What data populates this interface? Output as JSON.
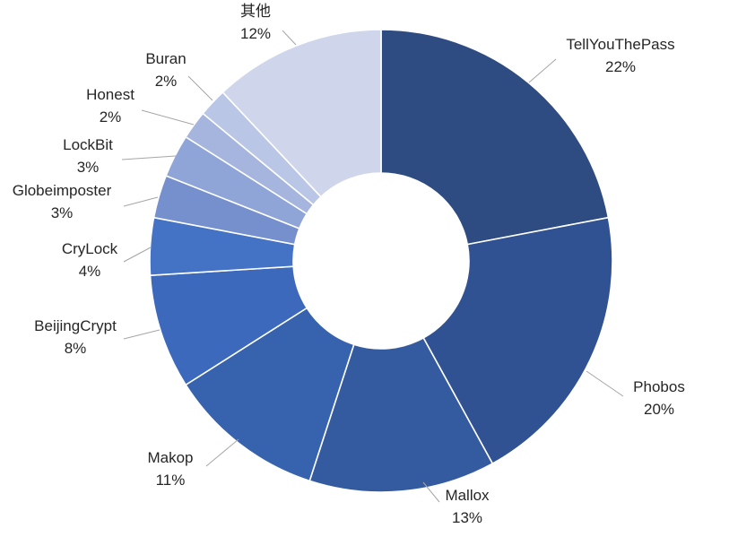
{
  "chart_data": {
    "type": "pie",
    "variant": "donut",
    "title": "",
    "legend": "none",
    "slices": [
      {
        "label": "TellYouThePass",
        "value": 22,
        "display": "22%",
        "color": "#2e4b82"
      },
      {
        "label": "Phobos",
        "value": 20,
        "display": "20%",
        "color": "#305292"
      },
      {
        "label": "Mallox",
        "value": 13,
        "display": "13%",
        "color": "#345ba0"
      },
      {
        "label": "Makop",
        "value": 11,
        "display": "11%",
        "color": "#3762ad"
      },
      {
        "label": "BeijingCrypt",
        "value": 8,
        "display": "8%",
        "color": "#3c69bb"
      },
      {
        "label": "CryLock",
        "value": 4,
        "display": "4%",
        "color": "#4472c4"
      },
      {
        "label": "Globeimposter",
        "value": 3,
        "display": "3%",
        "color": "#7690ce"
      },
      {
        "label": "LockBit",
        "value": 3,
        "display": "3%",
        "color": "#8fa4d7"
      },
      {
        "label": "Honest",
        "value": 2,
        "display": "2%",
        "color": "#a5b5de"
      },
      {
        "label": "Buran",
        "value": 2,
        "display": "2%",
        "color": "#bac6e5"
      },
      {
        "label": "其他",
        "value": 12,
        "display": "12%",
        "color": "#cfd5ea"
      }
    ]
  }
}
